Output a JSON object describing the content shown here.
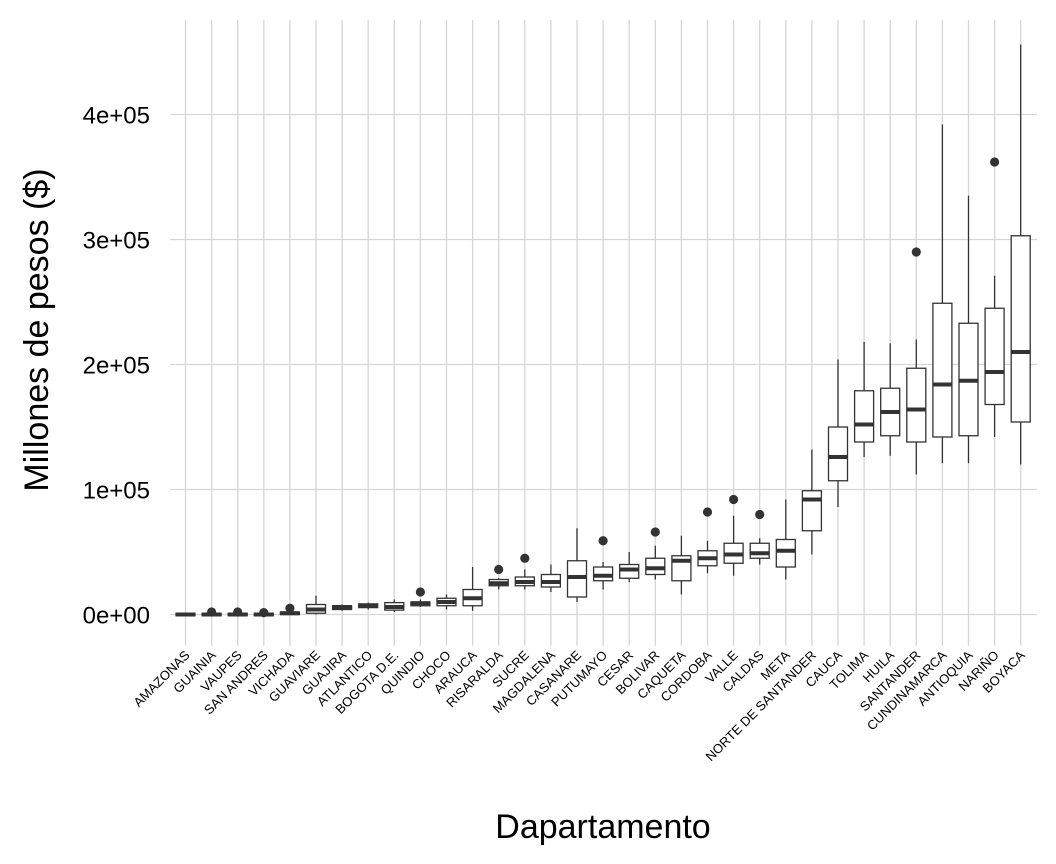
{
  "chart_data": {
    "type": "boxplot",
    "title": "",
    "xlabel": "Dapartamento",
    "ylabel": "Millones de pesos ($)",
    "ylim": [
      -25000,
      460000
    ],
    "yticks": [
      0,
      100000,
      200000,
      300000,
      400000
    ],
    "ytick_labels": [
      "0e+00",
      "1e+05",
      "2e+05",
      "3e+05",
      "4e+05"
    ],
    "grid": true,
    "categories": [
      "AMAZONAS",
      "GUAINIA",
      "VAUPES",
      "SAN ANDRES",
      "VICHADA",
      "GUAVIARE",
      "GUAJIRA",
      "ATLANTICO",
      "BOGOTA D.E.",
      "QUINDIO",
      "CHOCO",
      "ARAUCA",
      "RISARALDA",
      "SUCRE",
      "MAGDALENA",
      "CASANARE",
      "PUTUMAYO",
      "CESAR",
      "BOLIVAR",
      "CAQUETA",
      "CORDOBA",
      "VALLE",
      "CALDAS",
      "META",
      "NORTE DE SANTANDER",
      "CAUCA",
      "TOLIMA",
      "HUILA",
      "SANTANDER",
      "CUNDINAMARCA",
      "ANTIOQUIA",
      "NARIÑO",
      "BOYACA"
    ],
    "boxes": [
      {
        "min": -1500,
        "q1": -1000,
        "median": 0,
        "q3": 1000,
        "max": 1500,
        "outliers": []
      },
      {
        "min": -1500,
        "q1": -1000,
        "median": 0,
        "q3": 1000,
        "max": 1500,
        "outliers": [
          2000
        ]
      },
      {
        "min": -1500,
        "q1": -1000,
        "median": 0,
        "q3": 1000,
        "max": 1500,
        "outliers": [
          2000
        ]
      },
      {
        "min": -1500,
        "q1": -1000,
        "median": 0,
        "q3": 1000,
        "max": 1500,
        "outliers": [
          1500
        ]
      },
      {
        "min": -500,
        "q1": 0,
        "median": 1000,
        "q3": 2000,
        "max": 3000,
        "outliers": [
          5000
        ]
      },
      {
        "min": 0,
        "q1": 1000,
        "median": 4000,
        "q3": 8000,
        "max": 15000,
        "outliers": []
      },
      {
        "min": 3000,
        "q1": 4000,
        "median": 6000,
        "q3": 7000,
        "max": 8000,
        "outliers": []
      },
      {
        "min": 4000,
        "q1": 5500,
        "median": 7000,
        "q3": 8500,
        "max": 9500,
        "outliers": []
      },
      {
        "min": 2000,
        "q1": 3500,
        "median": 6000,
        "q3": 9500,
        "max": 12000,
        "outliers": []
      },
      {
        "min": 6000,
        "q1": 7000,
        "median": 9000,
        "q3": 10000,
        "max": 12000,
        "outliers": [
          18000
        ]
      },
      {
        "min": 4000,
        "q1": 7000,
        "median": 10000,
        "q3": 13000,
        "max": 16000,
        "outliers": []
      },
      {
        "min": 3000,
        "q1": 7000,
        "median": 13000,
        "q3": 20000,
        "max": 38000,
        "outliers": []
      },
      {
        "min": 20000,
        "q1": 23000,
        "median": 25000,
        "q3": 28000,
        "max": 29000,
        "outliers": [
          36000
        ]
      },
      {
        "min": 20000,
        "q1": 23000,
        "median": 26000,
        "q3": 30000,
        "max": 36000,
        "outliers": [
          45000
        ]
      },
      {
        "min": 18000,
        "q1": 22000,
        "median": 26000,
        "q3": 32000,
        "max": 40000,
        "outliers": []
      },
      {
        "min": 10000,
        "q1": 14000,
        "median": 30000,
        "q3": 43000,
        "max": 69000,
        "outliers": []
      },
      {
        "min": 20000,
        "q1": 27000,
        "median": 31000,
        "q3": 38000,
        "max": 42000,
        "outliers": [
          59000
        ]
      },
      {
        "min": 26000,
        "q1": 29000,
        "median": 36000,
        "q3": 40000,
        "max": 50000,
        "outliers": []
      },
      {
        "min": 28000,
        "q1": 32000,
        "median": 37000,
        "q3": 45000,
        "max": 55000,
        "outliers": [
          66000
        ]
      },
      {
        "min": 16000,
        "q1": 27000,
        "median": 43000,
        "q3": 47000,
        "max": 63000,
        "outliers": []
      },
      {
        "min": 33000,
        "q1": 39000,
        "median": 45000,
        "q3": 51000,
        "max": 59000,
        "outliers": [
          82000
        ]
      },
      {
        "min": 31000,
        "q1": 41000,
        "median": 48000,
        "q3": 57000,
        "max": 79000,
        "outliers": [
          92000
        ]
      },
      {
        "min": 40000,
        "q1": 45000,
        "median": 49000,
        "q3": 57000,
        "max": 61000,
        "outliers": [
          80000
        ]
      },
      {
        "min": 28000,
        "q1": 38000,
        "median": 51000,
        "q3": 60000,
        "max": 92000,
        "outliers": []
      },
      {
        "min": 48000,
        "q1": 67000,
        "median": 92000,
        "q3": 99000,
        "max": 132000,
        "outliers": []
      },
      {
        "min": 86000,
        "q1": 107000,
        "median": 126000,
        "q3": 150000,
        "max": 204000,
        "outliers": []
      },
      {
        "min": 126000,
        "q1": 138000,
        "median": 152000,
        "q3": 179000,
        "max": 218000,
        "outliers": []
      },
      {
        "min": 127000,
        "q1": 143000,
        "median": 162000,
        "q3": 181000,
        "max": 217000,
        "outliers": []
      },
      {
        "min": 112000,
        "q1": 138000,
        "median": 164000,
        "q3": 197000,
        "max": 220000,
        "outliers": [
          290000
        ]
      },
      {
        "min": 121000,
        "q1": 142000,
        "median": 184000,
        "q3": 249000,
        "max": 392000,
        "outliers": []
      },
      {
        "min": 121000,
        "q1": 143000,
        "median": 187000,
        "q3": 233000,
        "max": 335000,
        "outliers": []
      },
      {
        "min": 142000,
        "q1": 168000,
        "median": 194000,
        "q3": 245000,
        "max": 271000,
        "outliers": [
          362000
        ]
      },
      {
        "min": 120000,
        "q1": 154000,
        "median": 210000,
        "q3": 303000,
        "max": 456000,
        "outliers": []
      }
    ]
  }
}
